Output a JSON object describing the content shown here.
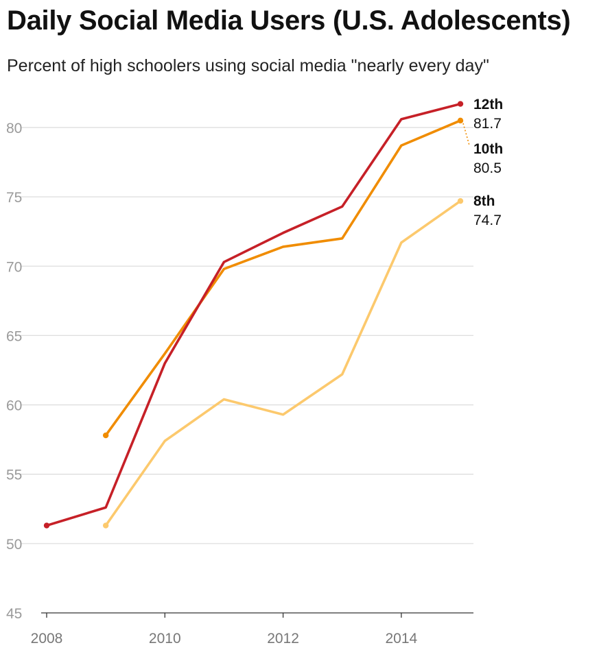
{
  "title": "Daily Social Media Users (U.S. Adolescents)",
  "subtitle": "Percent of high schoolers using social media \"nearly every day\"",
  "chart_data": {
    "type": "line",
    "title": "Daily Social Media Users (U.S. Adolescents)",
    "subtitle": "Percent of high schoolers using social media \"nearly every day\"",
    "xlabel": "",
    "ylabel": "",
    "xlim": [
      2008,
      2015
    ],
    "ylim": [
      45,
      82
    ],
    "x_ticks": [
      2008,
      2010,
      2012,
      2014
    ],
    "y_ticks": [
      45,
      50,
      55,
      60,
      65,
      70,
      75,
      80
    ],
    "grid": "horizontal",
    "legend": "direct labels at line ends (right)",
    "series": [
      {
        "name": "12th",
        "end_label": "81.7",
        "color": "#c62027",
        "x": [
          2008,
          2009,
          2010,
          2011,
          2012,
          2013,
          2014,
          2015
        ],
        "values": [
          51.3,
          52.6,
          63.0,
          70.3,
          72.4,
          74.3,
          80.6,
          81.7
        ]
      },
      {
        "name": "10th",
        "end_label": "80.5",
        "color": "#f08c00",
        "x": [
          2009,
          2010,
          2011,
          2012,
          2013,
          2014,
          2015
        ],
        "values": [
          57.8,
          63.7,
          69.8,
          71.4,
          72.0,
          78.7,
          80.5
        ]
      },
      {
        "name": "8th",
        "end_label": "74.7",
        "color": "#fcc96d",
        "x": [
          2009,
          2010,
          2011,
          2012,
          2013,
          2014,
          2015
        ],
        "values": [
          51.3,
          57.4,
          60.4,
          59.3,
          62.2,
          71.7,
          74.7
        ]
      }
    ]
  }
}
